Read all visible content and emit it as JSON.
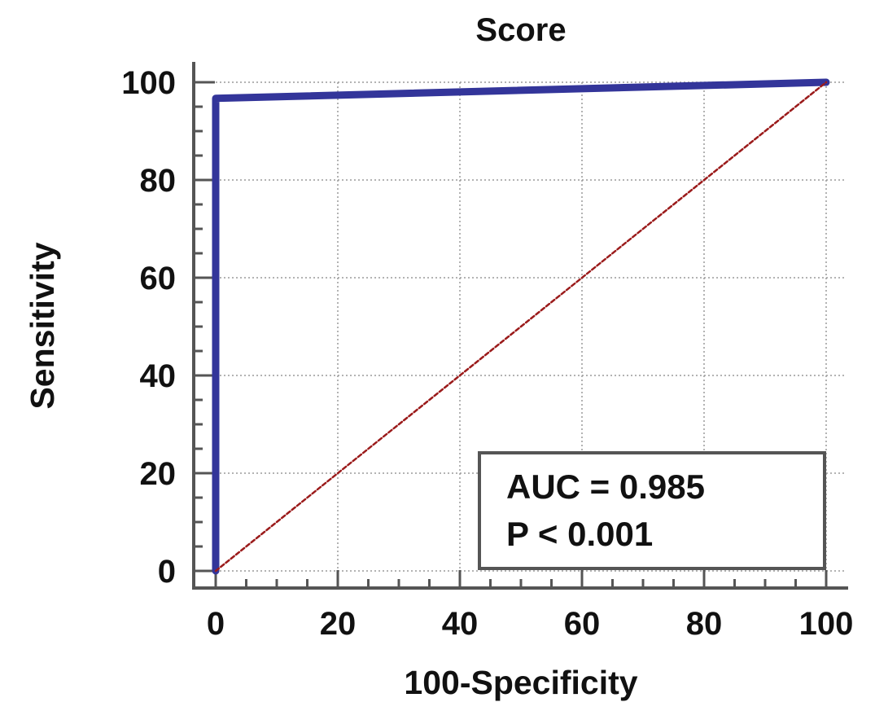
{
  "chart_data": {
    "type": "line",
    "title": "Score",
    "xlabel": "100-Specificity",
    "ylabel": "Sensitivity",
    "xlim": [
      0,
      100
    ],
    "ylim": [
      0,
      100
    ],
    "xticks": [
      0,
      20,
      40,
      60,
      80,
      100
    ],
    "yticks": [
      0,
      20,
      40,
      60,
      80,
      100
    ],
    "grid": true,
    "series": [
      {
        "x": [
          0,
          0,
          100
        ],
        "y": [
          0,
          96.7,
          100
        ],
        "color": "#33359a"
      },
      {
        "x": [
          0,
          100
        ],
        "y": [
          0,
          100
        ],
        "color": "#9b1b1b",
        "style": "dashed"
      }
    ],
    "annotation": {
      "auc_text": "AUC = 0.985",
      "p_text": "P < 0.001",
      "placement": "bottom-right"
    }
  }
}
